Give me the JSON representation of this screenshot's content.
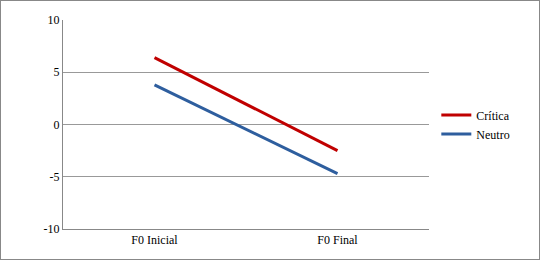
{
  "chart_data": {
    "type": "line",
    "categories": [
      "F0 Inicial",
      "F0 Final"
    ],
    "series": [
      {
        "name": "Crítica",
        "color": "#c00000",
        "values": [
          6.4,
          -2.5
        ]
      },
      {
        "name": "Neutro",
        "color": "#2e5e9e",
        "values": [
          3.8,
          -4.7
        ]
      }
    ],
    "ylim": [
      -10,
      10
    ],
    "yticks": [
      -10,
      -5,
      0,
      5,
      10
    ],
    "grid": true,
    "legend": "right"
  }
}
